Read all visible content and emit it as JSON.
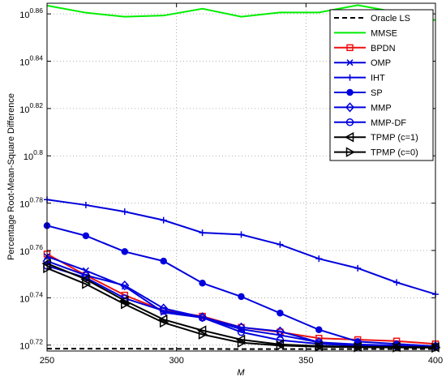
{
  "chart_data": {
    "type": "line",
    "xlabel": "M",
    "ylabel": "Percentage Root-Mean-Square Difference",
    "xlim": [
      250,
      400
    ],
    "xscale": "linear",
    "yscale": "log",
    "ylim_exponent": [
      0.7175,
      0.8645
    ],
    "x_ticks": [
      250,
      300,
      350,
      400
    ],
    "y_tick_exponents": [
      0.72,
      0.74,
      0.76,
      0.78,
      0.8,
      0.82,
      0.84,
      0.86
    ],
    "y_tick_labels": [
      {
        "base": "10",
        "exp": "0.72"
      },
      {
        "base": "10",
        "exp": "0.74"
      },
      {
        "base": "10",
        "exp": "0.76"
      },
      {
        "base": "10",
        "exp": "0.78"
      },
      {
        "base": "10",
        "exp": "0.8"
      },
      {
        "base": "10",
        "exp": "0.82"
      },
      {
        "base": "10",
        "exp": "0.84"
      },
      {
        "base": "10",
        "exp": "0.86"
      }
    ],
    "grid": true,
    "legend_position": "top-right",
    "x": [
      250,
      265,
      280,
      295,
      310,
      325,
      340,
      355,
      370,
      385,
      400
    ],
    "series": [
      {
        "name": "Oracle LS",
        "color": "#000000",
        "dash": "6,4",
        "marker": "none",
        "y_exponent": [
          0.7185,
          0.7185,
          0.7185,
          0.7184,
          0.7184,
          0.7183,
          0.7183,
          0.7183,
          0.7183,
          0.7183,
          0.7183
        ]
      },
      {
        "name": "MMSE",
        "color": "#00ee00",
        "dash": "",
        "marker": "none",
        "y_exponent": [
          0.8635,
          0.8605,
          0.8588,
          0.8593,
          0.8622,
          0.8588,
          0.8606,
          0.8606,
          0.8637,
          0.8607,
          0.8573
        ]
      },
      {
        "name": "BPDN",
        "color": "#ee1111",
        "dash": "",
        "marker": "square",
        "y_exponent": [
          0.7585,
          0.7495,
          0.7411,
          0.7346,
          0.7322,
          0.7275,
          0.7255,
          0.7229,
          0.7223,
          0.7217,
          0.7205
        ]
      },
      {
        "name": "OMP",
        "color": "#0000dd",
        "dash": "",
        "marker": "x",
        "y_exponent": [
          0.7575,
          0.7515,
          0.7448,
          0.7338,
          0.7316,
          0.7267,
          0.7242,
          0.7212,
          0.7198,
          0.7195,
          0.7193
        ]
      },
      {
        "name": "IHT",
        "color": "#0000dd",
        "dash": "",
        "marker": "plus",
        "y_exponent": [
          0.7815,
          0.7792,
          0.7764,
          0.7728,
          0.7675,
          0.7667,
          0.7625,
          0.7565,
          0.7525,
          0.7465,
          0.7415
        ]
      },
      {
        "name": "SP",
        "color": "#0000dd",
        "dash": "",
        "marker": "dot",
        "y_exponent": [
          0.7705,
          0.7662,
          0.7595,
          0.7555,
          0.7462,
          0.7405,
          0.7335,
          0.7265,
          0.7215,
          0.7205,
          0.7195
        ]
      },
      {
        "name": "MMP",
        "color": "#0000dd",
        "dash": "",
        "marker": "diamond",
        "y_exponent": [
          0.7555,
          0.7495,
          0.7452,
          0.7355,
          0.7318,
          0.7275,
          0.7258,
          0.7212,
          0.7203,
          0.7198,
          0.7195
        ]
      },
      {
        "name": "MMP-DF",
        "color": "#0000dd",
        "dash": "",
        "marker": "circle",
        "y_exponent": [
          0.7535,
          0.7485,
          0.7398,
          0.7345,
          0.7316,
          0.7255,
          0.7221,
          0.7205,
          0.7198,
          0.7195,
          0.7193
        ]
      },
      {
        "name": "TPMP (c=1)",
        "color": "#000000",
        "dash": "",
        "marker": "triangle-left",
        "y_exponent": [
          0.7545,
          0.7478,
          0.7388,
          0.7308,
          0.7262,
          0.7223,
          0.7203,
          0.7196,
          0.7193,
          0.7192,
          0.7191
        ]
      },
      {
        "name": "TPMP (c=0)",
        "color": "#000000",
        "dash": "",
        "marker": "triangle-right",
        "y_exponent": [
          0.7525,
          0.7458,
          0.7373,
          0.7295,
          0.7245,
          0.721,
          0.7198,
          0.7193,
          0.7191,
          0.719,
          0.7189
        ]
      }
    ]
  }
}
